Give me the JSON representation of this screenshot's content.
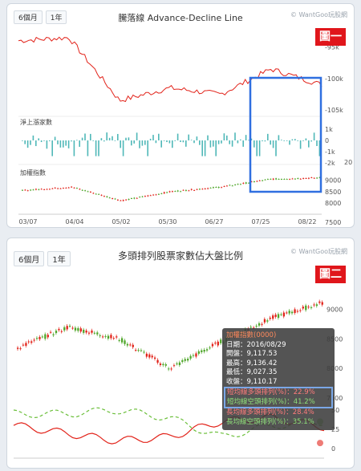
{
  "panel1": {
    "tabs": [
      "6個月",
      "1年"
    ],
    "title": "騰落線 Advance-Decline Line",
    "watermark": "© WantGoo玩股網",
    "badge": "圖一",
    "sub_labels": {
      "net_up": "淨上漲家數",
      "index": "加權指數"
    },
    "y_ticks_adl": [
      "-95k",
      "-100k",
      "-105k"
    ],
    "y_ticks_net": [
      "1k",
      "0",
      "-1k",
      "-2k"
    ],
    "y_ticks_idx": [
      "9000",
      "8500",
      "8000",
      "7500"
    ],
    "extra_tick": "20",
    "x_ticks": [
      "03/07",
      "04/04",
      "05/02",
      "05/30",
      "06/27",
      "07/25",
      "08/22"
    ]
  },
  "panel2": {
    "tabs": [
      "6個月",
      "1年"
    ],
    "title": "多頭排列股票家數佔大盤比例",
    "watermark": "© WantGoo玩股網",
    "badge": "圖二",
    "y_ticks_idx": [
      "9000",
      "8500",
      "8000",
      "7500"
    ],
    "y_ticks_pct": [
      "50",
      "25",
      "0"
    ],
    "tooltip": {
      "title": "加權指數(0000)",
      "date": "日期：2016/08/29",
      "open": "開盤：9,117.53",
      "high": "最高：9,136.42",
      "low": "最低：9,027.35",
      "close": "收盤：9,110.17",
      "bull_short": "短均線多頭排列(%)：22.9%",
      "bear_short": "短均線空頭排列(%)：41.2%",
      "bull_long": "長均線多頭排列(%)：28.4%",
      "bear_long": "長均線空頭排列(%)：35.1%"
    }
  },
  "colors": {
    "up": "#e2231a",
    "down": "#4fa62a",
    "adl": "#e2231a",
    "bar": "#4fb8b8",
    "highlight": "#2f6fe0",
    "dashed": "#6bbf3a"
  },
  "chart_data": [
    {
      "type": "line",
      "title": "騰落線 Advance-Decline Line",
      "x": [
        "03/07",
        "04/04",
        "05/02",
        "05/30",
        "06/27",
        "07/25",
        "08/22"
      ],
      "series": [
        {
          "name": "騰落線",
          "values": [
            -94000,
            -93500,
            -103500,
            -101500,
            -102500,
            -98500,
            -101000
          ]
        }
      ],
      "ylim": [
        -106000,
        -92000
      ]
    },
    {
      "type": "bar",
      "title": "淨上漲家數",
      "x": [
        "03/07",
        "04/04",
        "05/02",
        "05/30",
        "06/27",
        "07/25",
        "08/22"
      ],
      "ylim": [
        -2000,
        1000
      ]
    },
    {
      "type": "line",
      "title": "加權指數",
      "x": [
        "03/07",
        "04/04",
        "05/02",
        "05/30",
        "06/27",
        "07/25",
        "08/22"
      ],
      "series": [
        {
          "name": "加權指數",
          "values": [
            8550,
            8700,
            8100,
            8500,
            8700,
            9050,
            9110
          ]
        }
      ],
      "ylim": [
        7500,
        9200
      ]
    },
    {
      "type": "line",
      "title": "多頭排列股票家數佔大盤比例",
      "series": [
        {
          "name": "加權指數",
          "values": [
            8350,
            8700,
            8500,
            8000,
            8450,
            8850,
            9110
          ]
        },
        {
          "name": "長均線多頭排列(%)",
          "values": [
            30,
            20,
            10,
            15,
            35,
            40,
            28
          ]
        },
        {
          "name": "長均線空頭排列(%)",
          "values": [
            45,
            45,
            50,
            40,
            15,
            30,
            35
          ]
        }
      ]
    }
  ]
}
